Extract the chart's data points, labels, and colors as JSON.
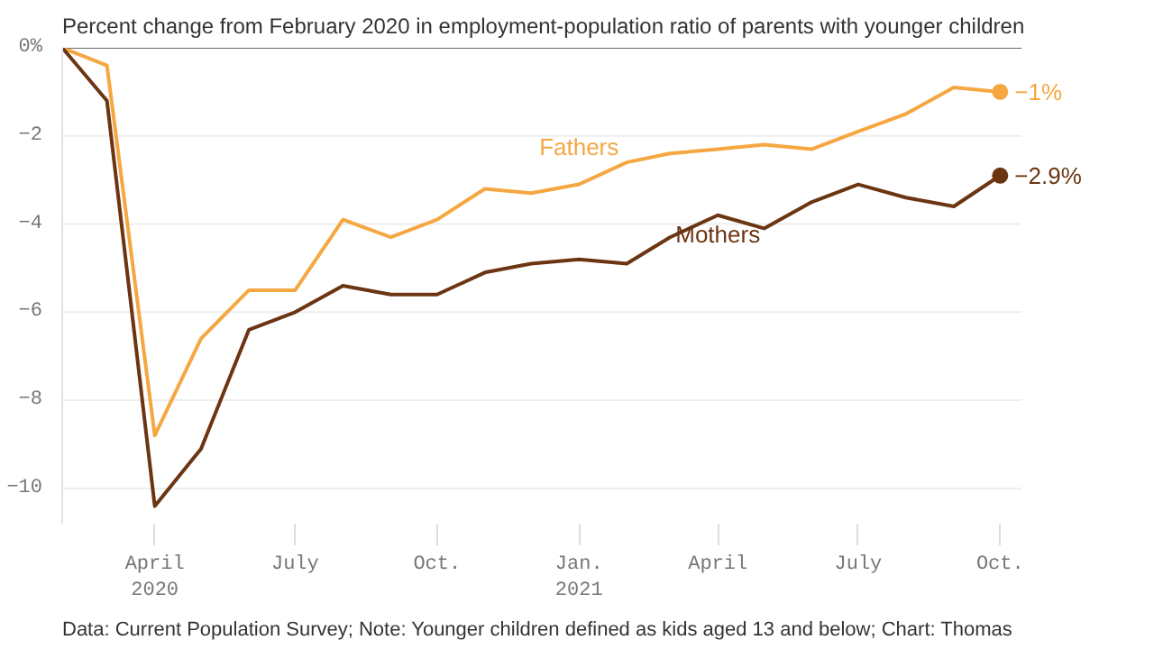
{
  "chart_data": {
    "type": "line",
    "title": "Percent change from February 2020 in employment-population ratio of parents with younger children",
    "x": [
      "2020-02",
      "2020-03",
      "2020-04",
      "2020-05",
      "2020-06",
      "2020-07",
      "2020-08",
      "2020-09",
      "2020-10",
      "2020-11",
      "2020-12",
      "2021-01",
      "2021-02",
      "2021-03",
      "2021-04",
      "2021-05",
      "2021-06",
      "2021-07",
      "2021-08",
      "2021-09",
      "2021-10"
    ],
    "series": [
      {
        "name": "Fathers",
        "color": "#f5a742",
        "values": [
          0,
          -0.4,
          -8.8,
          -6.6,
          -5.5,
          -5.5,
          -3.9,
          -4.3,
          -3.9,
          -3.2,
          -3.3,
          -3.1,
          -2.6,
          -2.4,
          -2.3,
          -2.2,
          -2.3,
          -1.9,
          -1.5,
          -0.9,
          -1.0
        ],
        "value_labels": [
          null,
          null,
          null,
          null,
          null,
          null,
          null,
          null,
          null,
          null,
          null,
          null,
          null,
          null,
          null,
          null,
          null,
          null,
          null,
          null,
          "−1%"
        ]
      },
      {
        "name": "Mothers",
        "color": "#6b3512",
        "values": [
          0,
          -1.2,
          -10.4,
          -9.1,
          -6.4,
          -6.0,
          -5.4,
          -5.6,
          -5.6,
          -5.1,
          -4.9,
          -4.8,
          -4.9,
          -4.3,
          -3.8,
          -4.1,
          -3.5,
          -3.1,
          -3.4,
          -3.6,
          -2.9
        ],
        "value_labels": [
          null,
          null,
          null,
          null,
          null,
          null,
          null,
          null,
          null,
          null,
          null,
          null,
          null,
          null,
          null,
          null,
          null,
          null,
          null,
          null,
          "−2.9%"
        ]
      }
    ],
    "xlim": [
      "2020-02",
      "2021-10-15"
    ],
    "xticks": [
      {
        "value": "2020-04",
        "label": "April\n2020"
      },
      {
        "value": "2020-07",
        "label": "July"
      },
      {
        "value": "2020-10",
        "label": "Oct."
      },
      {
        "value": "2021-01",
        "label": "Jan.\n2021"
      },
      {
        "value": "2021-04",
        "label": "April"
      },
      {
        "value": "2021-07",
        "label": "July"
      },
      {
        "value": "2021-10",
        "label": "Oct."
      }
    ],
    "ylim": [
      -10.8,
      0
    ],
    "yticks": [
      {
        "value": 0,
        "label": "0%"
      },
      {
        "value": -2,
        "label": "−2"
      },
      {
        "value": -4,
        "label": "−4"
      },
      {
        "value": -6,
        "label": "−6"
      },
      {
        "value": -8,
        "label": "−8"
      },
      {
        "value": -10,
        "label": "−10"
      }
    ],
    "ref_lines": [
      {
        "axis": "y",
        "value": 0,
        "color": "#666666"
      }
    ],
    "grid": "y",
    "marker": "none",
    "line_style": "solid",
    "annotations": [
      "Data: Current Population Survey; Note: Younger children defined as kids aged 13 and below; Chart: Thomas"
    ]
  }
}
